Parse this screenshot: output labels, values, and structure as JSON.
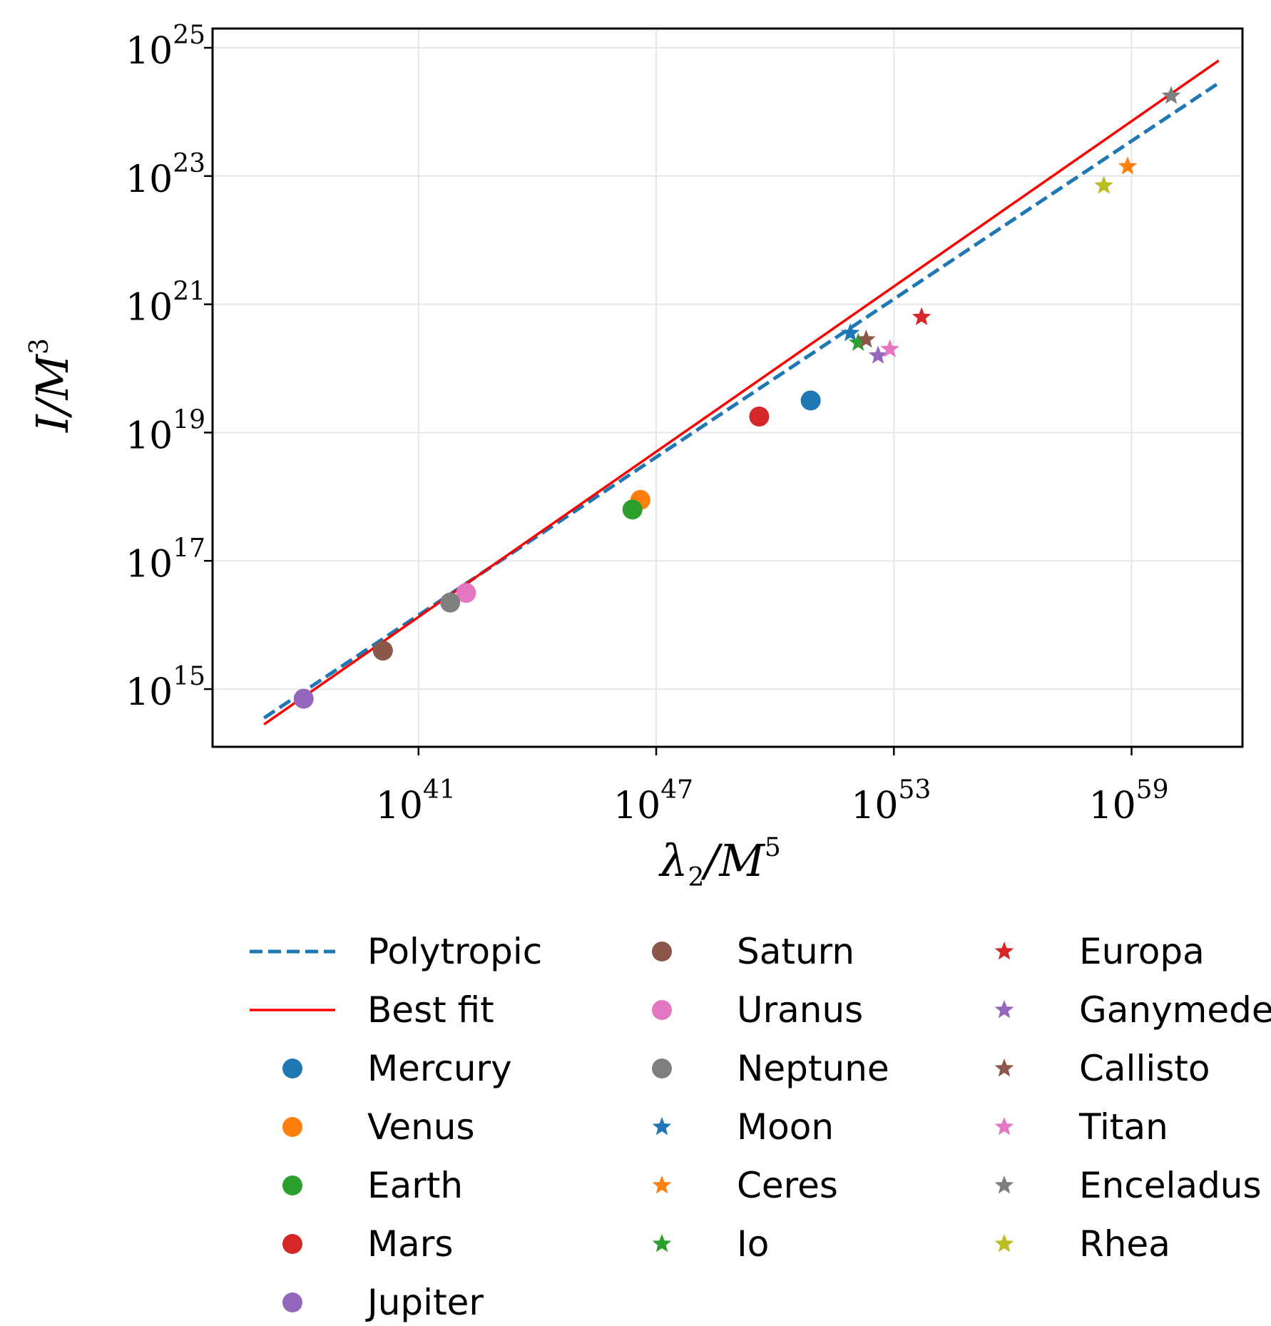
{
  "chart_data": {
    "type": "scatter",
    "xscale": "log",
    "yscale": "log",
    "xlabel_main": "λ",
    "xlabel_sub": "2",
    "xlabel_den": "/M",
    "xlabel_exp": "5",
    "ylabel_main": "I/M",
    "ylabel_exp": "3",
    "xlim_log10": [
      35.8,
      61.8
    ],
    "ylim_log10": [
      14.1,
      25.3
    ],
    "grid": true,
    "x_ticks": [
      {
        "base": "10",
        "exp": "41",
        "log10": 41
      },
      {
        "base": "10",
        "exp": "47",
        "log10": 47
      },
      {
        "base": "10",
        "exp": "53",
        "log10": 53
      },
      {
        "base": "10",
        "exp": "59",
        "log10": 59
      }
    ],
    "y_ticks": [
      {
        "base": "10",
        "exp": "15",
        "log10": 15
      },
      {
        "base": "10",
        "exp": "17",
        "log10": 17
      },
      {
        "base": "10",
        "exp": "19",
        "log10": 19
      },
      {
        "base": "10",
        "exp": "21",
        "log10": 21
      },
      {
        "base": "10",
        "exp": "23",
        "log10": 23
      },
      {
        "base": "10",
        "exp": "25",
        "log10": 25
      }
    ],
    "lines": [
      {
        "name": "Polytropic",
        "color": "#1f77b4",
        "style": "dashed",
        "x_log10": [
          37.1,
          61.2
        ],
        "y_log10": [
          14.55,
          24.45
        ]
      },
      {
        "name": "Best fit",
        "color": "#ff0000",
        "style": "solid",
        "x_log10": [
          37.1,
          61.2
        ],
        "y_log10": [
          14.45,
          24.8
        ]
      }
    ],
    "points": [
      {
        "name": "Mercury",
        "marker": "circle",
        "color": "#1f77b4",
        "x_log10": 50.9,
        "y_log10": 19.5
      },
      {
        "name": "Venus",
        "marker": "circle",
        "color": "#ff7f0e",
        "x_log10": 46.6,
        "y_log10": 17.95
      },
      {
        "name": "Earth",
        "marker": "circle",
        "color": "#2ca02c",
        "x_log10": 46.4,
        "y_log10": 17.8
      },
      {
        "name": "Mars",
        "marker": "circle",
        "color": "#d62728",
        "x_log10": 49.6,
        "y_log10": 19.25
      },
      {
        "name": "Jupiter",
        "marker": "circle",
        "color": "#9467bd",
        "x_log10": 38.1,
        "y_log10": 14.85
      },
      {
        "name": "Saturn",
        "marker": "circle",
        "color": "#8c564b",
        "x_log10": 40.1,
        "y_log10": 15.6
      },
      {
        "name": "Uranus",
        "marker": "circle",
        "color": "#e377c2",
        "x_log10": 42.2,
        "y_log10": 16.5
      },
      {
        "name": "Neptune",
        "marker": "circle",
        "color": "#7f7f7f",
        "x_log10": 41.8,
        "y_log10": 16.35
      },
      {
        "name": "Moon",
        "marker": "star",
        "color": "#1f77b4",
        "x_log10": 51.9,
        "y_log10": 20.55
      },
      {
        "name": "Ceres",
        "marker": "star",
        "color": "#ff7f0e",
        "x_log10": 58.9,
        "y_log10": 23.15
      },
      {
        "name": "Io",
        "marker": "star",
        "color": "#2ca02c",
        "x_log10": 52.1,
        "y_log10": 20.4
      },
      {
        "name": "Europa",
        "marker": "star",
        "color": "#d62728",
        "x_log10": 53.7,
        "y_log10": 20.8
      },
      {
        "name": "Ganymede",
        "marker": "star",
        "color": "#9467bd",
        "x_log10": 52.6,
        "y_log10": 20.2
      },
      {
        "name": "Callisto",
        "marker": "star",
        "color": "#8c564b",
        "x_log10": 52.3,
        "y_log10": 20.45
      },
      {
        "name": "Titan",
        "marker": "star",
        "color": "#e377c2",
        "x_log10": 52.9,
        "y_log10": 20.3
      },
      {
        "name": "Enceladus",
        "marker": "star",
        "color": "#7f7f7f",
        "x_log10": 60.0,
        "y_log10": 24.25
      },
      {
        "name": "Rhea",
        "marker": "star",
        "color": "#bcbd22",
        "x_log10": 58.3,
        "y_log10": 22.85
      }
    ],
    "legend": {
      "placement": "below",
      "columns": [
        [
          {
            "label": "Polytropic",
            "type": "line-dashed",
            "color": "#1f77b4"
          },
          {
            "label": "Best fit",
            "type": "line",
            "color": "#ff0000"
          },
          {
            "label": "Mercury",
            "type": "circle",
            "color": "#1f77b4"
          },
          {
            "label": "Venus",
            "type": "circle",
            "color": "#ff7f0e"
          },
          {
            "label": "Earth",
            "type": "circle",
            "color": "#2ca02c"
          },
          {
            "label": "Mars",
            "type": "circle",
            "color": "#d62728"
          },
          {
            "label": "Jupiter",
            "type": "circle",
            "color": "#9467bd"
          }
        ],
        [
          {
            "label": "Saturn",
            "type": "circle",
            "color": "#8c564b"
          },
          {
            "label": "Uranus",
            "type": "circle",
            "color": "#e377c2"
          },
          {
            "label": "Neptune",
            "type": "circle",
            "color": "#7f7f7f"
          },
          {
            "label": "Moon",
            "type": "star",
            "color": "#1f77b4"
          },
          {
            "label": "Ceres",
            "type": "star",
            "color": "#ff7f0e"
          },
          {
            "label": "Io",
            "type": "star",
            "color": "#2ca02c"
          }
        ],
        [
          {
            "label": "Europa",
            "type": "star",
            "color": "#d62728"
          },
          {
            "label": "Ganymede",
            "type": "star",
            "color": "#9467bd"
          },
          {
            "label": "Callisto",
            "type": "star",
            "color": "#8c564b"
          },
          {
            "label": "Titan",
            "type": "star",
            "color": "#e377c2"
          },
          {
            "label": "Enceladus",
            "type": "star",
            "color": "#7f7f7f"
          },
          {
            "label": "Rhea",
            "type": "star",
            "color": "#bcbd22"
          }
        ]
      ]
    }
  }
}
